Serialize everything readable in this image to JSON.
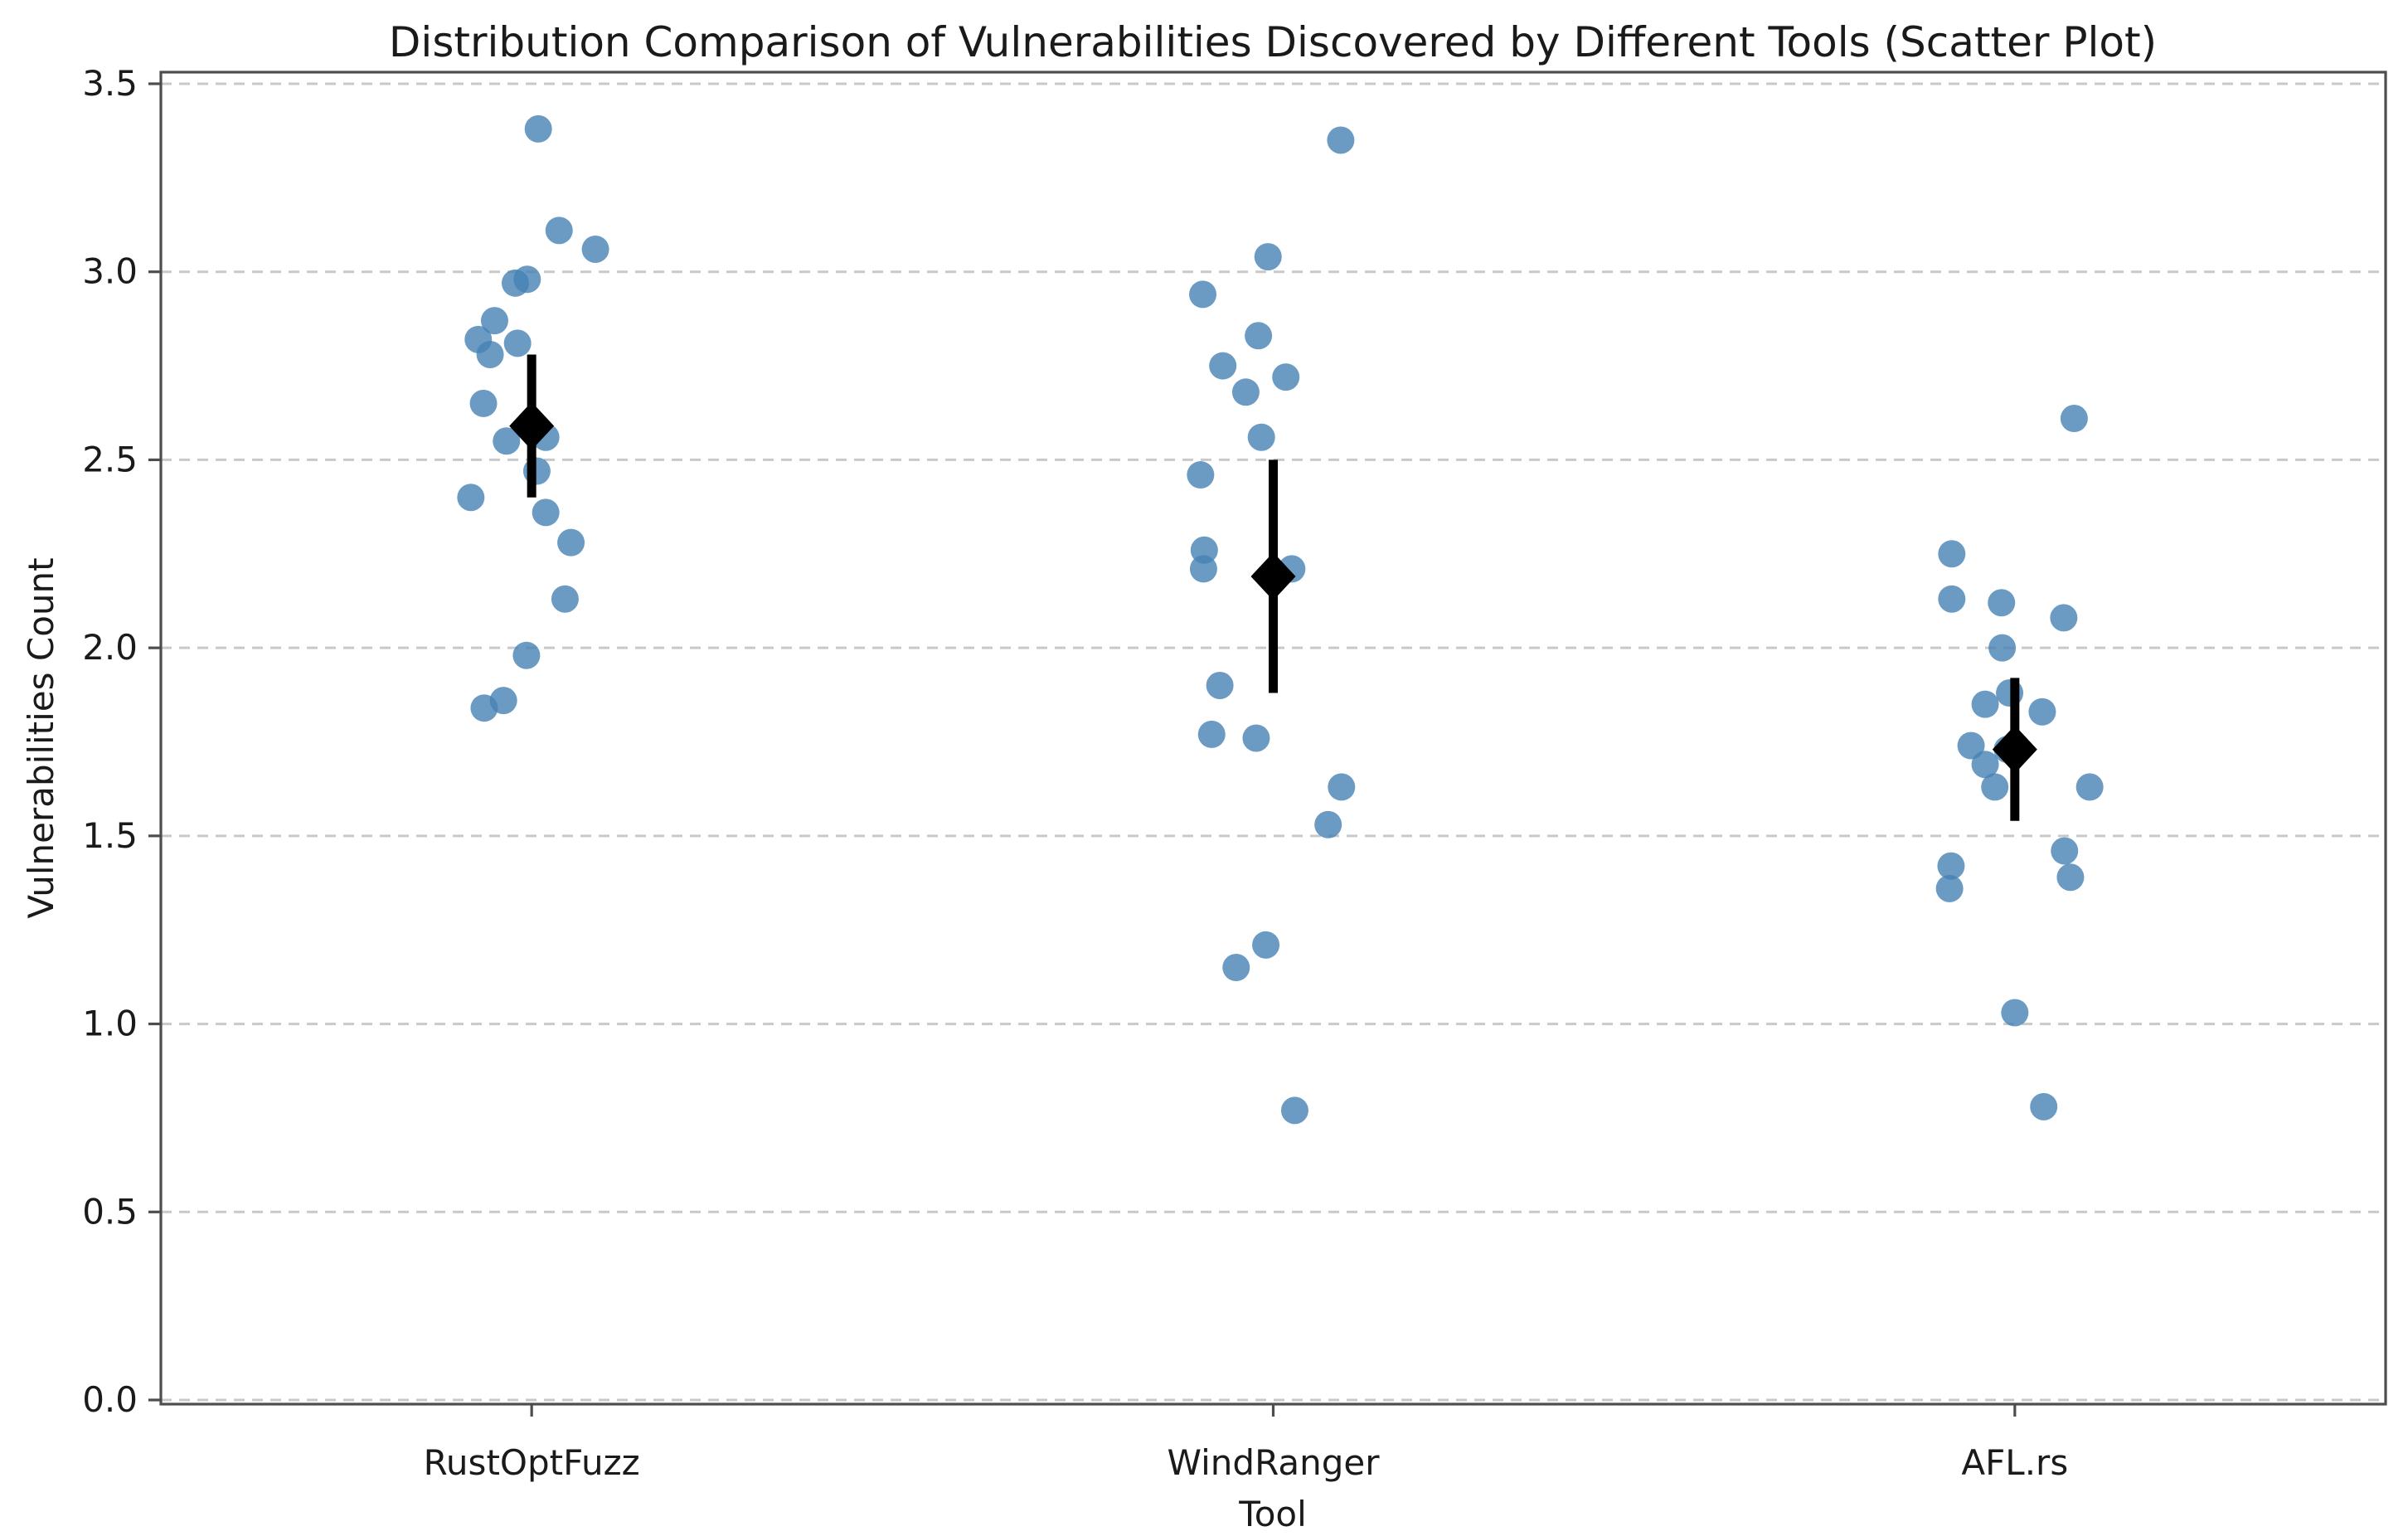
{
  "chart_data": {
    "type": "scatter",
    "title": "Distribution Comparison of Vulnerabilities Discovered by Different Tools (Scatter Plot)",
    "xlabel": "Tool",
    "ylabel": "Vulnerabilities Count",
    "categories": [
      "RustOptFuzz",
      "WindRanger",
      "AFL.rs"
    ],
    "ylim": [
      0,
      3.5
    ],
    "yticks": [
      0.0,
      0.5,
      1.0,
      1.5,
      2.0,
      2.5,
      3.0,
      3.5
    ],
    "grid": {
      "axis": "y",
      "style": "dashed",
      "on": true
    },
    "legend": "none",
    "marker": {
      "shape": "circle",
      "radius_px": 16.5,
      "opacity": 0.8
    },
    "mean_marker": {
      "shape": "diamond",
      "color": "#000000"
    },
    "series": [
      {
        "name": "RustOptFuzz",
        "mean": 2.59,
        "std": 0.19,
        "points": [
          [
            0.009,
            3.38
          ],
          [
            0.037,
            3.11
          ],
          [
            0.086,
            3.06
          ],
          [
            -0.006,
            2.98
          ],
          [
            -0.022,
            2.97
          ],
          [
            -0.05,
            2.87
          ],
          [
            -0.072,
            2.82
          ],
          [
            -0.019,
            2.81
          ],
          [
            -0.056,
            2.78
          ],
          [
            -0.065,
            2.65
          ],
          [
            0.019,
            2.56
          ],
          [
            -0.034,
            2.55
          ],
          [
            0.007,
            2.47
          ],
          [
            -0.082,
            2.4
          ],
          [
            0.019,
            2.36
          ],
          [
            0.053,
            2.28
          ],
          [
            0.045,
            2.13
          ],
          [
            -0.007,
            1.98
          ],
          [
            -0.038,
            1.86
          ],
          [
            -0.064,
            1.84
          ]
        ]
      },
      {
        "name": "WindRanger",
        "mean": 2.19,
        "std": 0.31,
        "points": [
          [
            0.091,
            3.35
          ],
          [
            -0.007,
            3.04
          ],
          [
            -0.095,
            2.94
          ],
          [
            -0.02,
            2.83
          ],
          [
            -0.068,
            2.75
          ],
          [
            0.017,
            2.72
          ],
          [
            -0.037,
            2.68
          ],
          [
            -0.016,
            2.56
          ],
          [
            -0.098,
            2.46
          ],
          [
            -0.093,
            2.26
          ],
          [
            -0.094,
            2.21
          ],
          [
            0.025,
            2.21
          ],
          [
            -0.072,
            1.9
          ],
          [
            -0.083,
            1.77
          ],
          [
            -0.023,
            1.76
          ],
          [
            0.092,
            1.63
          ],
          [
            0.074,
            1.53
          ],
          [
            -0.01,
            1.21
          ],
          [
            -0.05,
            1.15
          ],
          [
            0.029,
            0.77
          ]
        ]
      },
      {
        "name": "AFL.rs",
        "mean": 1.73,
        "std": 0.19,
        "points": [
          [
            0.08,
            2.61
          ],
          [
            -0.085,
            2.25
          ],
          [
            -0.085,
            2.13
          ],
          [
            -0.018,
            2.12
          ],
          [
            0.066,
            2.08
          ],
          [
            -0.017,
            2.0
          ],
          [
            -0.007,
            1.88
          ],
          [
            -0.04,
            1.85
          ],
          [
            0.037,
            1.83
          ],
          [
            -0.059,
            1.74
          ],
          [
            -0.01,
            1.73
          ],
          [
            -0.04,
            1.69
          ],
          [
            -0.027,
            1.63
          ],
          [
            0.101,
            1.63
          ],
          [
            0.067,
            1.46
          ],
          [
            -0.086,
            1.42
          ],
          [
            0.075,
            1.39
          ],
          [
            -0.088,
            1.36
          ],
          [
            0.0,
            1.03
          ],
          [
            0.039,
            0.78
          ]
        ]
      }
    ],
    "colors": {
      "point": "#4682b4",
      "error_bar": "#000000",
      "grid": "#c9c9c9",
      "spine": "#4d4d4d",
      "text": "#1a1a1a",
      "background": "#ffffff"
    }
  }
}
